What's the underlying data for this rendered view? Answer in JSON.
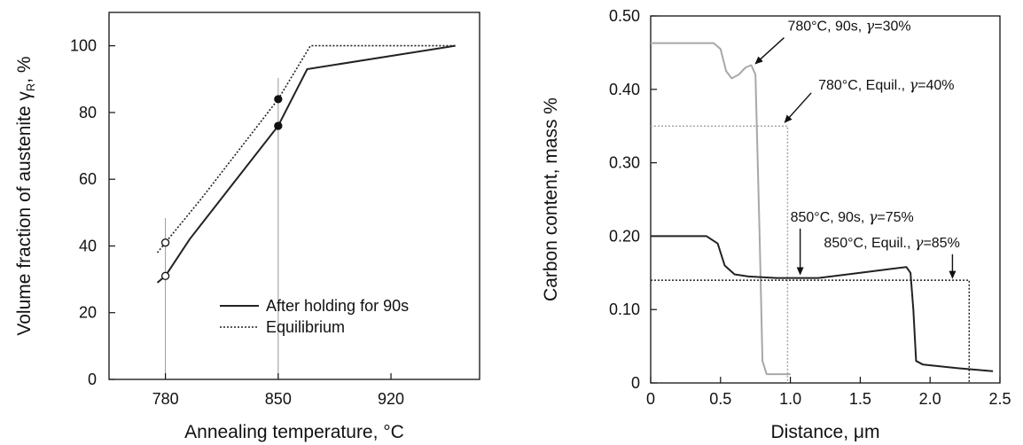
{
  "chart_data": [
    {
      "type": "line",
      "xlabel": "Annealing temperature, °C",
      "ylabel": "Volume fraction of austenite γR, %",
      "ylabel_main": "Volume fraction of austenite γ",
      "ylabel_sub": "R",
      "ylabel_tail": ", %",
      "xlim": [
        745,
        975
      ],
      "ylim": [
        0,
        110
      ],
      "xticks": [
        780,
        850,
        920
      ],
      "yticks": [
        0,
        20,
        40,
        60,
        80,
        100
      ],
      "grid": false,
      "legend": "lower-right",
      "vlines": [
        780,
        850
      ],
      "series": [
        {
          "name": "After holding for 90s",
          "style": "solid",
          "color": "#222222",
          "x": [
            775,
            780,
            795,
            850,
            868,
            960
          ],
          "y": [
            29,
            31,
            42,
            76,
            93,
            100
          ]
        },
        {
          "name": "Equilibrium",
          "style": "dotted",
          "color": "#222222",
          "x": [
            775,
            780,
            802,
            850,
            870,
            960
          ],
          "y": [
            38,
            41,
            54,
            84,
            100,
            100
          ]
        }
      ],
      "markers": [
        {
          "x": 780,
          "y": 31,
          "fill": "open"
        },
        {
          "x": 780,
          "y": 41,
          "fill": "open"
        },
        {
          "x": 850,
          "y": 76,
          "fill": "filled"
        },
        {
          "x": 850,
          "y": 84,
          "fill": "filled"
        }
      ]
    },
    {
      "type": "line",
      "xlabel": "Distance, μm",
      "ylabel": "Carbon content, mass %",
      "xlim": [
        0,
        2.5
      ],
      "ylim": [
        0,
        0.5
      ],
      "xticks": [
        "0",
        "0.5",
        "1.0",
        "1.5",
        "2.0",
        "2.5"
      ],
      "xtick_values": [
        0,
        0.5,
        1.0,
        1.5,
        2.0,
        2.5
      ],
      "yticks": [
        "0",
        "0.10",
        "0.20",
        "0.30",
        "0.40",
        "0.50"
      ],
      "ytick_values": [
        0,
        0.1,
        0.2,
        0.3,
        0.4,
        0.5
      ],
      "grid": false,
      "series": [
        {
          "style": "solid",
          "color": "#a8a8a8",
          "x": [
            0,
            0.45,
            0.5,
            0.54,
            0.58,
            0.63,
            0.68,
            0.72,
            0.75,
            0.78,
            0.8,
            0.83,
            0.88,
            1.0
          ],
          "y": [
            0.463,
            0.463,
            0.455,
            0.425,
            0.415,
            0.42,
            0.43,
            0.433,
            0.42,
            0.2,
            0.03,
            0.012,
            0.012,
            0.012
          ]
        },
        {
          "style": "dotted",
          "color": "#a8a8a8",
          "x": [
            0,
            0.98,
            0.98
          ],
          "y": [
            0.35,
            0.35,
            0.0
          ]
        },
        {
          "style": "solid",
          "color": "#222222",
          "x": [
            0,
            0.4,
            0.48,
            0.53,
            0.6,
            0.7,
            0.9,
            1.2,
            1.5,
            1.7,
            1.83,
            1.86,
            1.88,
            1.9,
            1.95,
            2.2,
            2.45
          ],
          "y": [
            0.2,
            0.2,
            0.19,
            0.16,
            0.148,
            0.145,
            0.143,
            0.143,
            0.15,
            0.155,
            0.158,
            0.15,
            0.1,
            0.03,
            0.025,
            0.02,
            0.016
          ]
        },
        {
          "style": "dotted",
          "color": "#222222",
          "x": [
            0,
            2.28,
            2.28
          ],
          "y": [
            0.14,
            0.14,
            0.0
          ]
        }
      ],
      "annotations": [
        {
          "pre": "780°C, 90s, ",
          "sym": "γ",
          "post": "=30%",
          "x": 0.98,
          "y": 0.48,
          "arrow_to": [
            0.75,
            0.435
          ]
        },
        {
          "pre": "780°C, Equil., ",
          "sym": "γ",
          "post": "=40%",
          "x": 1.2,
          "y": 0.4,
          "arrow_to": [
            0.96,
            0.355
          ]
        },
        {
          "pre": "850°C, 90s, ",
          "sym": "γ",
          "post": "=75%",
          "x": 1.0,
          "y": 0.22,
          "arrow_to": [
            1.07,
            0.148
          ]
        },
        {
          "pre": "850°C, Equil., ",
          "sym": "γ",
          "post": "=85%",
          "x": 1.24,
          "y": 0.185,
          "arrow_to": [
            2.16,
            0.143
          ]
        }
      ]
    }
  ]
}
